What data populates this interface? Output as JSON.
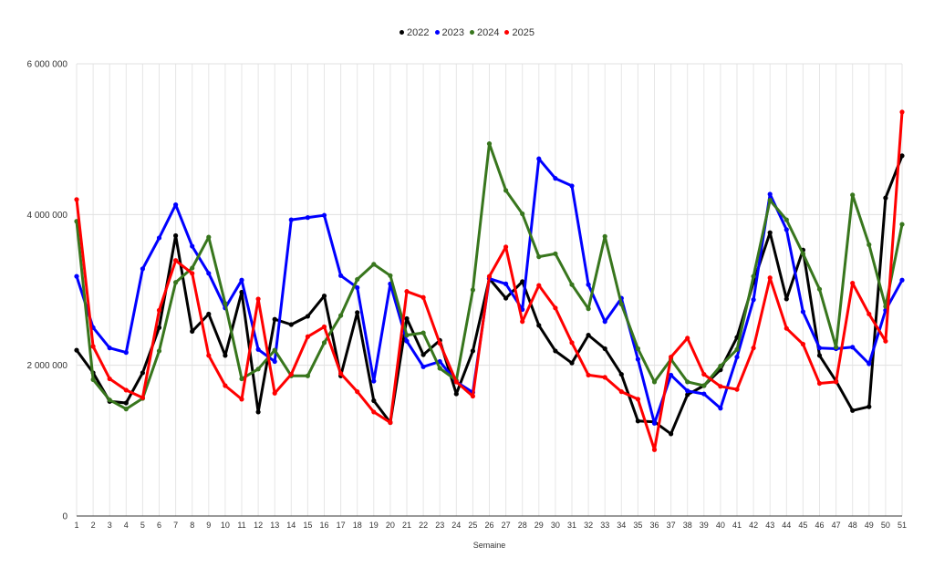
{
  "chart_data": {
    "type": "line",
    "title": "",
    "xlabel": "Semaine",
    "ylabel": "",
    "ylim": [
      0,
      6000000
    ],
    "yticks": [
      0,
      2000000,
      4000000,
      6000000
    ],
    "ytick_labels": [
      "0",
      "2 000 000",
      "4 000 000",
      "6 000 000"
    ],
    "grid": true,
    "legend_position": "top",
    "categories": [
      "1",
      "2",
      "3",
      "4",
      "5",
      "6",
      "7",
      "8",
      "9",
      "10",
      "11",
      "12",
      "13",
      "14",
      "15",
      "16",
      "17",
      "18",
      "19",
      "20",
      "21",
      "22",
      "23",
      "24",
      "25",
      "26",
      "27",
      "28",
      "29",
      "30",
      "31",
      "32",
      "33",
      "34",
      "35",
      "36",
      "37",
      "38",
      "39",
      "40",
      "41",
      "42",
      "43",
      "44",
      "45",
      "46",
      "47",
      "48",
      "49",
      "50",
      "51"
    ],
    "series": [
      {
        "name": "2022",
        "color": "#000000",
        "values": [
          2200000,
          1900000,
          1520000,
          1500000,
          1900000,
          2500000,
          3720000,
          2450000,
          2680000,
          2130000,
          2970000,
          1380000,
          2610000,
          2540000,
          2650000,
          2920000,
          1860000,
          2700000,
          1530000,
          1240000,
          2620000,
          2140000,
          2330000,
          1620000,
          2190000,
          3150000,
          2890000,
          3110000,
          2530000,
          2190000,
          2030000,
          2400000,
          2220000,
          1880000,
          1260000,
          1250000,
          1090000,
          1610000,
          1730000,
          1940000,
          2370000,
          3100000,
          3760000,
          2880000,
          3530000,
          2130000,
          1790000,
          1400000,
          1450000,
          4220000,
          4780000
        ]
      },
      {
        "name": "2023",
        "color": "#0000ff",
        "values": [
          3180000,
          2500000,
          2230000,
          2170000,
          3280000,
          3690000,
          4130000,
          3580000,
          3220000,
          2760000,
          3130000,
          2210000,
          2050000,
          3930000,
          3960000,
          3990000,
          3190000,
          3030000,
          1790000,
          3080000,
          2320000,
          1980000,
          2050000,
          1780000,
          1640000,
          3150000,
          3080000,
          2740000,
          4740000,
          4480000,
          4380000,
          3070000,
          2580000,
          2890000,
          2080000,
          1230000,
          1870000,
          1660000,
          1620000,
          1430000,
          2110000,
          2870000,
          4270000,
          3800000,
          2710000,
          2230000,
          2220000,
          2240000,
          2020000,
          2730000,
          3130000
        ]
      },
      {
        "name": "2024",
        "color": "#38761d",
        "values": [
          3910000,
          1810000,
          1540000,
          1420000,
          1560000,
          2190000,
          3100000,
          3290000,
          3700000,
          2820000,
          1820000,
          1950000,
          2200000,
          1860000,
          1860000,
          2300000,
          2660000,
          3140000,
          3340000,
          3190000,
          2400000,
          2430000,
          1960000,
          1800000,
          3000000,
          4940000,
          4320000,
          4010000,
          3440000,
          3480000,
          3070000,
          2750000,
          3710000,
          2810000,
          2220000,
          1780000,
          2080000,
          1780000,
          1730000,
          1990000,
          2210000,
          3180000,
          4190000,
          3930000,
          3480000,
          3010000,
          2240000,
          4260000,
          3600000,
          2780000,
          3870000
        ]
      },
      {
        "name": "2025",
        "color": "#ff0000",
        "values": [
          4200000,
          2250000,
          1820000,
          1670000,
          1570000,
          2730000,
          3390000,
          3220000,
          2130000,
          1730000,
          1550000,
          2880000,
          1630000,
          1880000,
          2380000,
          2510000,
          1890000,
          1650000,
          1380000,
          1240000,
          2980000,
          2900000,
          2290000,
          1780000,
          1590000,
          3180000,
          3570000,
          2580000,
          3060000,
          2760000,
          2300000,
          1870000,
          1840000,
          1650000,
          1550000,
          880000,
          2110000,
          2360000,
          1880000,
          1720000,
          1680000,
          2230000,
          3160000,
          2490000,
          2280000,
          1760000,
          1780000,
          3090000,
          2680000,
          2320000,
          5360000
        ]
      }
    ]
  }
}
